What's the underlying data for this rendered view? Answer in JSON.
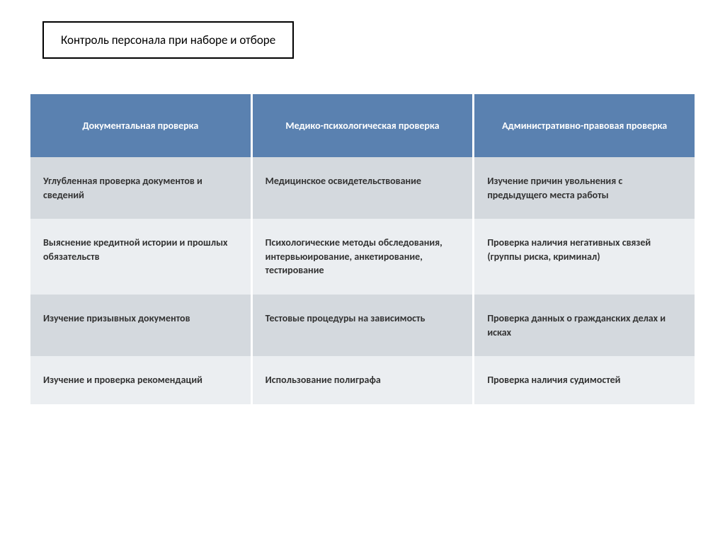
{
  "title": "Контроль персонала при наборе и отборе",
  "table": {
    "headers": [
      "Документальная проверка",
      "Медико-психологическая проверка",
      "Административно-правовая проверка"
    ],
    "rows": [
      [
        "Углубленная проверка документов и сведений",
        "Медицинское освидетельствование",
        "Изучение причин увольнения с предыдущего места работы"
      ],
      [
        "Выяснение кредитной истории и прошлых обязательств",
        "Психологические методы обследования, интервьюирование, анкетирование, тестирование",
        "Проверка наличия негативных связей (группы риска, криминал)"
      ],
      [
        "Изучение призывных документов",
        "Тестовые процедуры на зависимость",
        "Проверка данных о гражданских делах и исках"
      ],
      [
        "Изучение и проверка рекомендаций",
        "Использование полиграфа",
        "Проверка наличия судимостей"
      ]
    ],
    "styling": {
      "header_bg": "#5a81b0",
      "header_text": "#ffffff",
      "row_dark_bg": "#d4d9de",
      "row_light_bg": "#ebeef1",
      "cell_text": "#333333",
      "title_border": "#000000",
      "page_bg": "#ffffff",
      "header_fontsize": 14,
      "cell_fontsize": 14,
      "title_fontsize": 17,
      "columns": 3,
      "row_count": 4
    }
  }
}
